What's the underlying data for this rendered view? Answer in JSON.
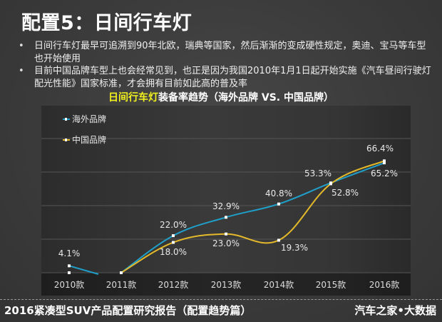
{
  "slide": {
    "title": "配置5：日间行车灯",
    "bullets": [
      "日间行车灯最早可追溯到90年北欧，瑞典等国家，然后渐渐的变成硬性规定，奥迪、宝马等车型也开始使用",
      "目前中国品牌车型上也会经常见到，也正是因为我国2010年1月1日起开始实施《汽车昼间行驶灯配光性能》国家标准，才会拥有目前如此高的普及率"
    ],
    "chart_title_highlight": "日间行车灯",
    "chart_title_rest": "装备率趋势（海外品牌 VS. 中国品牌）",
    "footer_left": "2016紧凑型SUV产品配置研究报告（配置趋势篇）",
    "footer_right": "汽车之家•大数据"
  },
  "colors": {
    "overseas": "#1f9fc9",
    "china": "#e3b92b",
    "highlight": "#f2f21e"
  },
  "legend": [
    {
      "label": "海外品牌",
      "color": "#1f9fc9"
    },
    {
      "label": "中国品牌",
      "color": "#e3b92b"
    }
  ],
  "xlabels": [
    "2010款",
    "2011款",
    "2012款",
    "2013款",
    "2014款",
    "2015款",
    "2016款"
  ],
  "data_labels": {
    "overseas": [
      "4.1%",
      "",
      "22.0%",
      "32.9%",
      "40.8%",
      "53.3%",
      "65.2%"
    ],
    "china": [
      "",
      "",
      "18.0%",
      "23.0%",
      "19.3%",
      "52.8%",
      "66.4%"
    ]
  },
  "chart_data": {
    "type": "line",
    "title": "日间行车灯装备率趋势（海外品牌 VS. 中国品牌）",
    "xlabel": "",
    "ylabel": "",
    "categories": [
      "2010款",
      "2011款",
      "2012款",
      "2013款",
      "2014款",
      "2015款",
      "2016款"
    ],
    "series": [
      {
        "name": "海外品牌",
        "values": [
          4.1,
          0,
          22.0,
          32.9,
          40.8,
          53.3,
          65.2
        ]
      },
      {
        "name": "中国品牌",
        "values": [
          0,
          0,
          18.0,
          23.0,
          19.3,
          52.8,
          66.4
        ]
      }
    ],
    "ylim": [
      0,
      80
    ],
    "grid": true,
    "legend_position": "top-left",
    "smooth": true
  }
}
